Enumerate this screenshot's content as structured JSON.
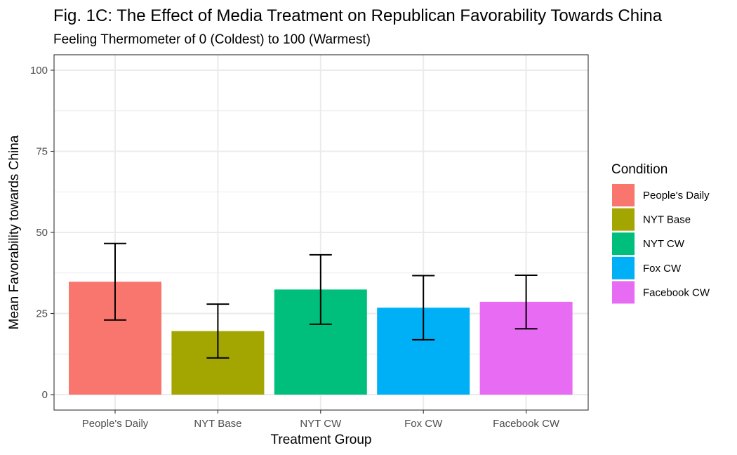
{
  "chart_data": {
    "type": "bar",
    "title": "Fig. 1C: The Effect of Media Treatment on Republican Favorability Towards China",
    "subtitle": "Feeling Thermometer of 0 (Coldest) to 100 (Warmest)",
    "xlabel": "Treatment Group",
    "ylabel": "Mean Favorability towards China",
    "ylim": [
      0,
      100
    ],
    "yticks": [
      0,
      25,
      50,
      75,
      100
    ],
    "ytick_labels": [
      "0",
      "25",
      "50",
      "75",
      "100"
    ],
    "categories": [
      "People's Daily",
      "NYT Base",
      "NYT CW",
      "Fox CW",
      "Facebook CW"
    ],
    "values": [
      34.8,
      19.6,
      32.4,
      26.8,
      28.6
    ],
    "error_lower": [
      23.0,
      11.3,
      21.7,
      16.9,
      20.3
    ],
    "error_upper": [
      46.6,
      27.9,
      43.1,
      36.7,
      36.8
    ],
    "colors": [
      "#F8766D",
      "#A3A500",
      "#00BF7D",
      "#00B0F6",
      "#E76BF3"
    ],
    "legend": {
      "title": "Condition",
      "entries": [
        "People's Daily",
        "NYT Base",
        "NYT CW",
        "Fox CW",
        "Facebook CW"
      ],
      "position": "right"
    },
    "grid": true
  }
}
